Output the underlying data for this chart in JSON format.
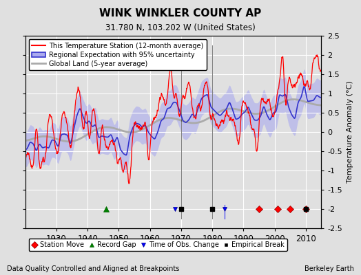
{
  "title": "WINK WINKLER COUNTY AP",
  "subtitle": "31.780 N, 103.202 W (United States)",
  "ylabel": "Temperature Anomaly (°C)",
  "xlabel_note": "Data Quality Controlled and Aligned at Breakpoints",
  "credit": "Berkeley Earth",
  "ylim": [
    -2.5,
    2.5
  ],
  "xlim": [
    1920,
    2015
  ],
  "yticks": [
    -2.5,
    -2,
    -1.5,
    -1,
    -0.5,
    0,
    0.5,
    1,
    1.5,
    2,
    2.5
  ],
  "xticks": [
    1930,
    1940,
    1950,
    1960,
    1970,
    1980,
    1990,
    2000,
    2010
  ],
  "background_color": "#e0e0e0",
  "plot_bg_color": "#e0e0e0",
  "grid_color": "#ffffff",
  "station_color": "#ff0000",
  "regional_color": "#3333cc",
  "regional_fill_color": "#aaaaee",
  "global_color": "#aaaaaa",
  "legend_line1": "This Temperature Station (12-month average)",
  "legend_line2": "Regional Expectation with 95% uncertainty",
  "legend_line3": "Global Land (5-year average)",
  "station_moves": [
    1995,
    2001,
    2005,
    2010
  ],
  "record_gaps": [
    1946
  ],
  "time_obs_changes": [
    1968,
    1984
  ],
  "empirical_breaks": [
    1970,
    1980,
    2010
  ],
  "vertical_lines_black": [
    1970,
    1980
  ],
  "vertical_line_blue": [
    1968,
    1984
  ],
  "seed": 123
}
